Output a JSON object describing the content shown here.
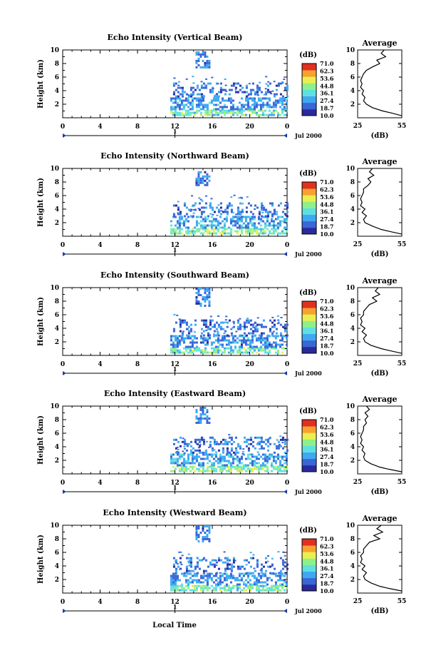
{
  "figure": {
    "xlabel": "Local Time",
    "time_ticks": [
      "0",
      "4",
      "8",
      "12",
      "16",
      "20",
      "0"
    ],
    "day_label": "1",
    "month_label": "Jul 2000",
    "height_ticks": [
      "2",
      "4",
      "6",
      "8",
      "10"
    ],
    "ylabel": "Height (km)",
    "colorbar_unit": "(dB)",
    "colorbar_ticks": [
      "71.0",
      "62.3",
      "53.6",
      "44.8",
      "36.1",
      "27.4",
      "18.7",
      "10.0"
    ],
    "average_title": "Average",
    "average_xlabel": "(dB)"
  },
  "colors": {
    "scale": [
      "#2a2a9c",
      "#3a66d6",
      "#3fa9f0",
      "#5fe0e0",
      "#8ff08a",
      "#e8f050",
      "#f8a030",
      "#e03020"
    ]
  },
  "chart_data": [
    {
      "type": "heatmap",
      "title": "Echo Intensity (Vertical Beam)",
      "xlabel": "Local Time",
      "ylabel": "Height (km)",
      "xlim": [
        0,
        24
      ],
      "ylim": [
        0,
        10
      ],
      "zlim": [
        10.0,
        71.0
      ],
      "echo_regions": [
        {
          "t": [
            11.5,
            24
          ],
          "h": [
            0.3,
            1.2
          ],
          "db": 40
        },
        {
          "t": [
            11.5,
            24
          ],
          "h": [
            1.2,
            3.0
          ],
          "db": 24
        },
        {
          "t": [
            11.8,
            24
          ],
          "h": [
            3.0,
            5.2
          ],
          "db": 20
        },
        {
          "t": [
            14.2,
            15.6
          ],
          "h": [
            7.5,
            9.8
          ],
          "db": 22
        }
      ],
      "average": {
        "title": "Average",
        "xlabel": "(dB)",
        "xlim": [
          25,
          55
        ],
        "xticks": [
          25,
          55
        ],
        "height_km": [
          0.3,
          0.7,
          1.0,
          1.5,
          2.0,
          2.5,
          3.0,
          3.5,
          4.0,
          4.5,
          5.0,
          5.5,
          6.0,
          6.5,
          7.0,
          7.5,
          8.0,
          8.5,
          9.0,
          9.5,
          10.0
        ],
        "db": [
          55,
          48,
          42,
          35,
          31,
          29,
          30,
          28,
          29,
          27,
          28,
          27,
          28,
          29,
          31,
          35,
          40,
          38,
          44,
          41,
          43
        ]
      }
    },
    {
      "type": "heatmap",
      "title": "Echo Intensity (Northward Beam)",
      "xlabel": "Local Time",
      "ylabel": "Height (km)",
      "xlim": [
        0,
        24
      ],
      "ylim": [
        0,
        10
      ],
      "zlim": [
        10.0,
        71.0
      ],
      "echo_regions": [
        {
          "t": [
            11.5,
            24
          ],
          "h": [
            0.3,
            1.2
          ],
          "db": 42
        },
        {
          "t": [
            11.5,
            24
          ],
          "h": [
            1.2,
            3.0
          ],
          "db": 25
        },
        {
          "t": [
            11.8,
            24
          ],
          "h": [
            3.0,
            5.0
          ],
          "db": 20
        },
        {
          "t": [
            14.2,
            15.6
          ],
          "h": [
            7.5,
            9.6
          ],
          "db": 22
        }
      ],
      "average": {
        "title": "Average",
        "xlabel": "(dB)",
        "xlim": [
          25,
          55
        ],
        "xticks": [
          25,
          55
        ],
        "height_km": [
          0.3,
          0.7,
          1.0,
          1.5,
          2.0,
          2.5,
          3.0,
          3.5,
          4.0,
          4.5,
          5.0,
          5.5,
          6.0,
          6.5,
          7.0,
          7.5,
          8.0,
          8.5,
          9.0,
          9.5,
          10.0
        ],
        "db": [
          55,
          47,
          41,
          35,
          30,
          29,
          31,
          28,
          30,
          27,
          28,
          27,
          28,
          29,
          29,
          32,
          34,
          32,
          36,
          33,
          35
        ]
      }
    },
    {
      "type": "heatmap",
      "title": "Echo Intensity (Southward Beam)",
      "xlabel": "Local Time",
      "ylabel": "Height (km)",
      "xlim": [
        0,
        24
      ],
      "ylim": [
        0,
        10
      ],
      "zlim": [
        10.0,
        71.0
      ],
      "echo_regions": [
        {
          "t": [
            11.5,
            24
          ],
          "h": [
            0.3,
            1.2
          ],
          "db": 40
        },
        {
          "t": [
            11.5,
            24
          ],
          "h": [
            1.2,
            3.0
          ],
          "db": 23
        },
        {
          "t": [
            11.8,
            24
          ],
          "h": [
            3.0,
            5.3
          ],
          "db": 20
        },
        {
          "t": [
            14.2,
            15.6
          ],
          "h": [
            7.3,
            10.0
          ],
          "db": 21
        }
      ],
      "average": {
        "title": "Average",
        "xlabel": "(dB)",
        "xlim": [
          25,
          55
        ],
        "xticks": [
          25,
          55
        ],
        "height_km": [
          0.3,
          0.7,
          1.0,
          1.5,
          2.0,
          2.5,
          3.0,
          3.5,
          4.0,
          4.5,
          5.0,
          5.5,
          6.0,
          6.5,
          7.0,
          7.5,
          8.0,
          8.5,
          9.0,
          9.5,
          10.0
        ],
        "db": [
          55,
          47,
          41,
          34,
          30,
          29,
          31,
          28,
          30,
          27,
          28,
          27,
          29,
          29,
          31,
          33,
          38,
          35,
          40,
          37,
          39
        ]
      }
    },
    {
      "type": "heatmap",
      "title": "Echo Intensity (Eastward Beam)",
      "xlabel": "Local Time",
      "ylabel": "Height (km)",
      "xlim": [
        0,
        24
      ],
      "ylim": [
        0,
        10
      ],
      "zlim": [
        10.0,
        71.0
      ],
      "echo_regions": [
        {
          "t": [
            11.5,
            24
          ],
          "h": [
            0.3,
            1.2
          ],
          "db": 44
        },
        {
          "t": [
            11.5,
            24
          ],
          "h": [
            1.2,
            3.0
          ],
          "db": 26
        },
        {
          "t": [
            11.8,
            24
          ],
          "h": [
            3.0,
            5.5
          ],
          "db": 21
        },
        {
          "t": [
            14.2,
            15.6
          ],
          "h": [
            7.5,
            9.9
          ],
          "db": 22
        }
      ],
      "average": {
        "title": "Average",
        "xlabel": "(dB)",
        "xlim": [
          25,
          55
        ],
        "xticks": [
          25,
          55
        ],
        "height_km": [
          0.3,
          0.7,
          1.0,
          1.5,
          2.0,
          2.5,
          3.0,
          3.5,
          4.0,
          4.5,
          5.0,
          5.5,
          6.0,
          6.5,
          7.0,
          7.5,
          8.0,
          8.5,
          9.0,
          9.5,
          10.0
        ],
        "db": [
          55,
          46,
          40,
          34,
          30,
          29,
          30,
          28,
          29,
          27,
          28,
          27,
          28,
          29,
          29,
          31,
          30,
          32,
          30,
          33,
          31
        ]
      }
    },
    {
      "type": "heatmap",
      "title": "Echo Intensity (Westward Beam)",
      "xlabel": "Local Time",
      "ylabel": "Height (km)",
      "xlim": [
        0,
        24
      ],
      "ylim": [
        0,
        10
      ],
      "zlim": [
        10.0,
        71.0
      ],
      "echo_regions": [
        {
          "t": [
            11.5,
            24
          ],
          "h": [
            0.3,
            1.2
          ],
          "db": 41
        },
        {
          "t": [
            11.5,
            24
          ],
          "h": [
            1.2,
            3.0
          ],
          "db": 24
        },
        {
          "t": [
            11.8,
            24
          ],
          "h": [
            3.0,
            5.3
          ],
          "db": 20
        },
        {
          "t": [
            14.2,
            15.6
          ],
          "h": [
            7.6,
            10.0
          ],
          "db": 22
        }
      ],
      "average": {
        "title": "Average",
        "xlabel": "(dB)",
        "xlim": [
          25,
          55
        ],
        "xticks": [
          25,
          55
        ],
        "height_km": [
          0.3,
          0.7,
          1.0,
          1.5,
          2.0,
          2.5,
          3.0,
          3.5,
          4.0,
          4.5,
          5.0,
          5.5,
          6.0,
          6.5,
          7.0,
          7.5,
          8.0,
          8.5,
          9.0,
          9.5,
          10.0
        ],
        "db": [
          55,
          46,
          40,
          34,
          30,
          29,
          31,
          28,
          30,
          27,
          28,
          27,
          29,
          29,
          31,
          33,
          40,
          36,
          42,
          38,
          41
        ]
      }
    }
  ]
}
